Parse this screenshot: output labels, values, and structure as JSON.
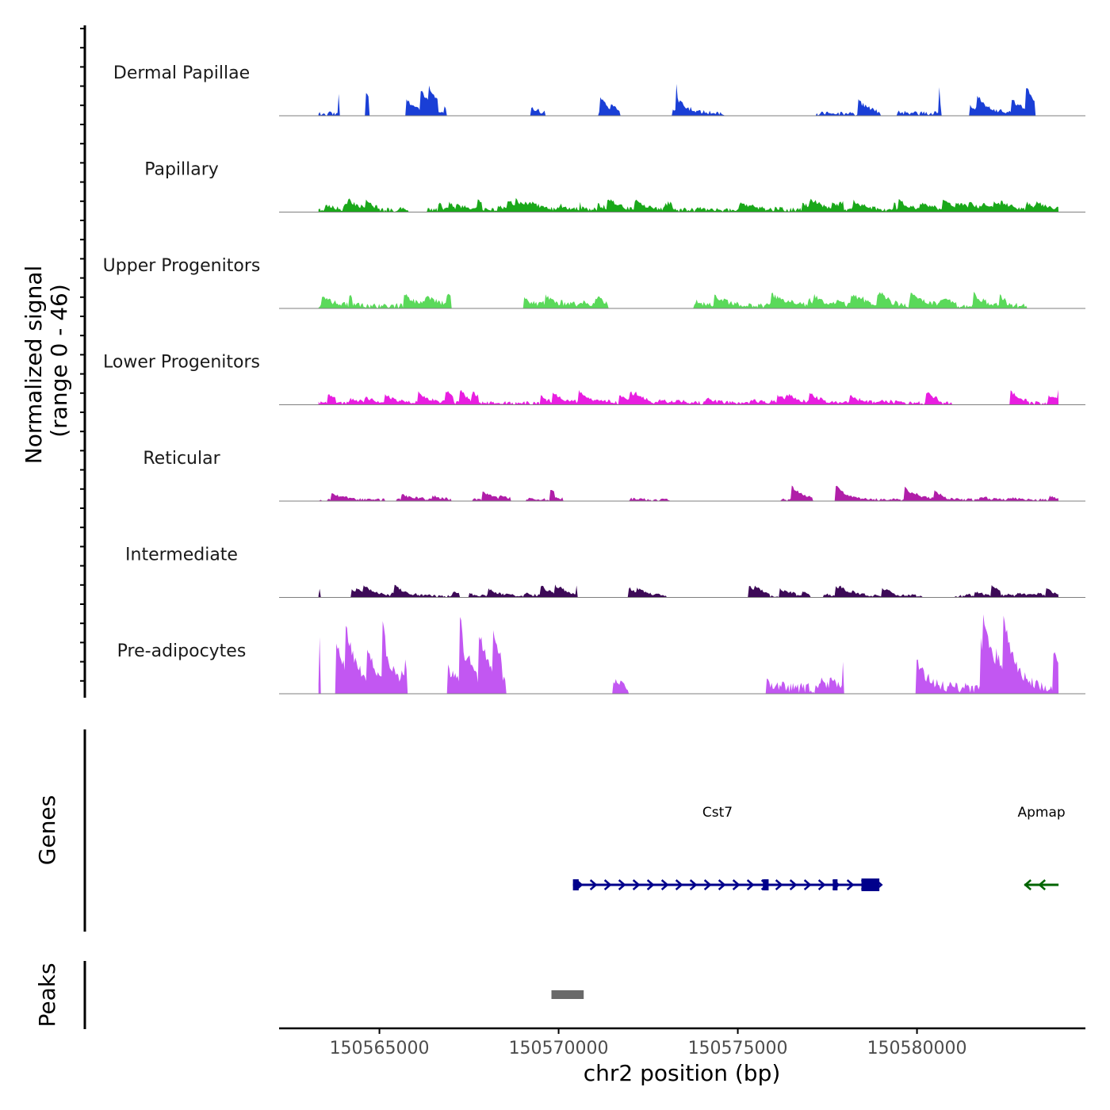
{
  "chart_data": {
    "type": "area",
    "region": {
      "chrom": "chr2",
      "start": 150562200,
      "end": 150584700
    },
    "signal_axis": {
      "label_line1": "Normalized signal",
      "label_line2": "(range 0 - 46)",
      "ylim": [
        0,
        46
      ]
    },
    "x_axis": {
      "label": "chr2 position (bp)",
      "ticks": [
        150565000,
        150570000,
        150575000,
        150580000
      ],
      "tick_labels": [
        "150565000",
        "150570000",
        "150575000",
        "150580000"
      ]
    },
    "tracks": [
      {
        "name": "Dermal Papillae",
        "color": "#1a3fd6",
        "seed": 11,
        "density": 0.55,
        "base": 0.05,
        "peak": 0.35
      },
      {
        "name": "Papillary",
        "color": "#1aa81a",
        "seed": 23,
        "density": 0.9,
        "base": 0.05,
        "peak": 0.14
      },
      {
        "name": "Upper Progenitors",
        "color": "#5ad95a",
        "seed": 37,
        "density": 0.85,
        "base": 0.06,
        "peak": 0.18
      },
      {
        "name": "Lower Progenitors",
        "color": "#e81ee0",
        "seed": 41,
        "density": 0.88,
        "base": 0.04,
        "peak": 0.16
      },
      {
        "name": "Reticular",
        "color": "#b01ea8",
        "seed": 53,
        "density": 0.6,
        "base": 0.03,
        "peak": 0.18
      },
      {
        "name": "Intermediate",
        "color": "#3d0a57",
        "seed": 67,
        "density": 0.55,
        "base": 0.03,
        "peak": 0.14
      },
      {
        "name": "Pre-adipocytes",
        "color": "#c257f2",
        "seed": 79,
        "density": 0.6,
        "base": 0.12,
        "peak": 0.95
      }
    ],
    "genes_label": "Genes",
    "genes": [
      {
        "name": "Cst7",
        "color": "#00008b",
        "strand": "+",
        "start": 150570400,
        "end": 150578950,
        "exons": [
          [
            150570400,
            150570560
          ],
          [
            150575700,
            150575860
          ],
          [
            150577650,
            150577760
          ],
          [
            150578450,
            150578950
          ]
        ]
      },
      {
        "name": "Apmap",
        "color": "#006400",
        "strand": "-",
        "start": 150583000,
        "end": 150583950,
        "exons": []
      }
    ],
    "peaks_label": "Peaks",
    "peaks": [
      {
        "start": 150569800,
        "end": 150570700,
        "color": "#696969"
      }
    ]
  }
}
